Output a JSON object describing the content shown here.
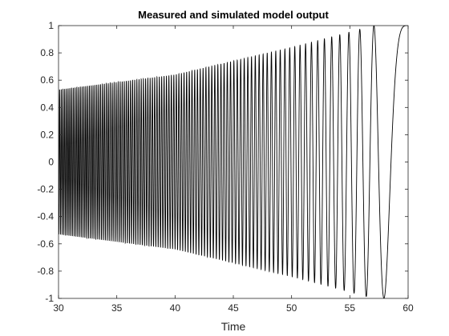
{
  "chart_data": {
    "type": "line",
    "title": "Measured and simulated model output",
    "xlabel": "Time",
    "ylabel": "",
    "xlim": [
      30,
      60
    ],
    "ylim": [
      -1,
      1
    ],
    "x_ticks": [
      30,
      35,
      40,
      45,
      50,
      55,
      60
    ],
    "y_ticks": [
      -1,
      -0.8,
      -0.6,
      -0.4,
      -0.2,
      0,
      0.2,
      0.4,
      0.6,
      0.8,
      1
    ],
    "x_tick_labels": [
      "30",
      "35",
      "40",
      "45",
      "50",
      "55",
      "60"
    ],
    "y_tick_labels": [
      "-1",
      "-0.8",
      "-0.6",
      "-0.4",
      "-0.2",
      "0",
      "0.2",
      "0.4",
      "0.6",
      "0.8",
      "1"
    ],
    "grid": false,
    "series": [
      {
        "description": "chirp-like oscillation, frequency decreasing toward x=60, amplitude growing from about 0.53 at x=30 to 1 near x=57",
        "color": "#000000",
        "envelope_points": [
          {
            "x": 30,
            "amplitude": 0.53
          },
          {
            "x": 40,
            "amplitude": 0.64
          },
          {
            "x": 50,
            "amplitude": 0.84
          },
          {
            "x": 54,
            "amplitude": 0.93
          },
          {
            "x": 57,
            "amplitude": 1.0
          },
          {
            "x": 60,
            "amplitude": 1.0
          }
        ],
        "peak_x_near_end": [
          52.3,
          53.2,
          54.2,
          55.2,
          56.4,
          60.0
        ],
        "trough_x_near_end": [
          51.9,
          52.8,
          53.8,
          54.9,
          55.8,
          57.4
        ]
      }
    ]
  }
}
